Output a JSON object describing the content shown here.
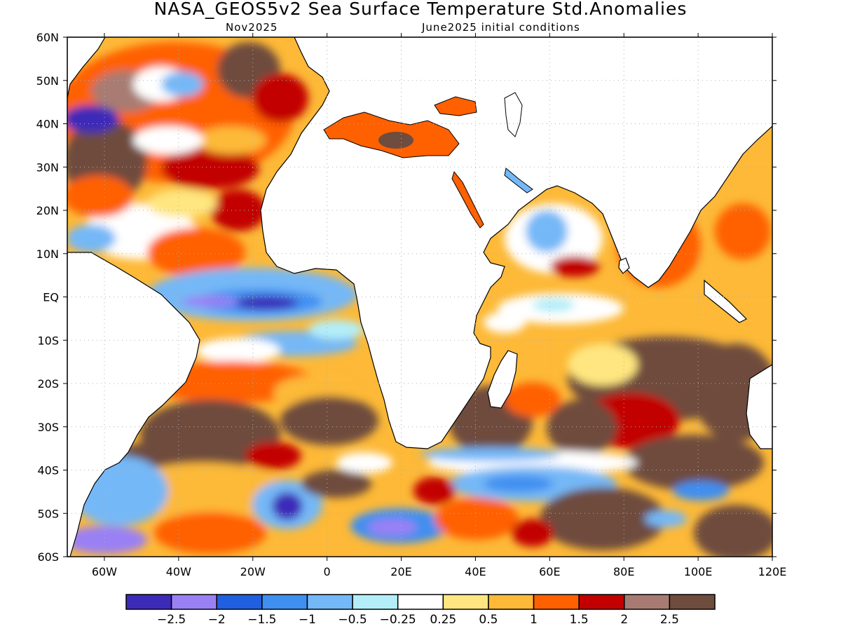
{
  "header": {
    "title": "NASA_GEOS5v2 Sea Surface Temperature Std.Anomalies",
    "subtitle_left": "Nov2025",
    "subtitle_right": "June2025 initial conditions"
  },
  "map": {
    "lat_labels": [
      "60N",
      "50N",
      "40N",
      "30N",
      "20N",
      "10N",
      "EQ",
      "10S",
      "20S",
      "30S",
      "40S",
      "50S",
      "60S"
    ],
    "lon_labels": [
      "60W",
      "40W",
      "20W",
      "0",
      "20E",
      "40E",
      "60E",
      "80E",
      "100E",
      "120E"
    ],
    "lat_range": [
      -60,
      60
    ],
    "lon_range": [
      -70,
      120
    ],
    "grid": "dotted"
  },
  "colorbar": {
    "colors": [
      "#3c2bb8",
      "#9a80f5",
      "#1f5fe0",
      "#3f8ff0",
      "#74b8f7",
      "#b3eef8",
      "#ffffff",
      "#ffe680",
      "#fdb937",
      "#ff6000",
      "#c20000",
      "#a87b72",
      "#6e4c3e"
    ],
    "labels": [
      "−2.5",
      "−2",
      "−1.5",
      "−1",
      "−0.5",
      "−0.25",
      "0.25",
      "0.5",
      "1",
      "1.5",
      "2",
      "2.5"
    ]
  },
  "palette": {
    "land": "#ffffff",
    "coast": "#000000",
    "grid": "#b0b0b0"
  }
}
